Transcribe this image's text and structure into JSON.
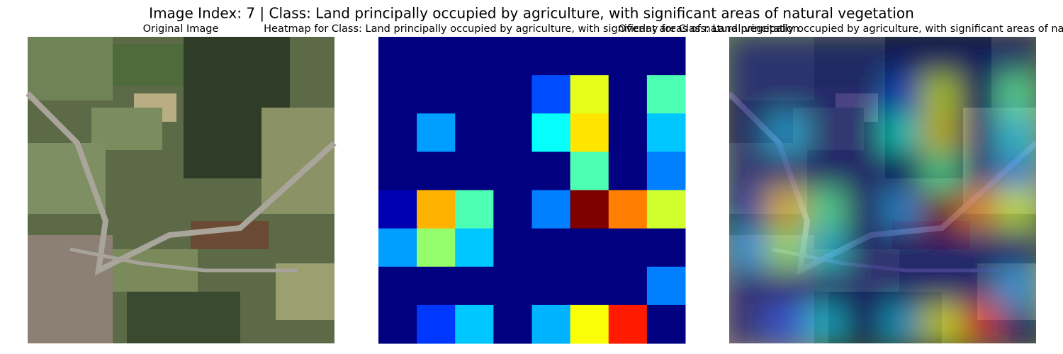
{
  "title": "Image Index: 7 | Class: Land principally occupied by agriculture, with significant areas of natural vegetation",
  "images": [
    {
      "title": "Original Image"
    },
    {
      "title": "Overlay for Class: Land principally occupied by agriculture, with significant areas of natural vegetation"
    }
  ],
  "chart_data": {
    "type": "heatmap",
    "title": "Heatmap for Class: Land principally occupied by agriculture, with significant areas of natural vegetation",
    "colormap": "jet",
    "zlim": [
      0,
      1
    ],
    "z": [
      [
        0,
        0,
        0,
        0,
        0,
        0,
        0,
        0
      ],
      [
        0,
        0,
        0,
        0,
        0.2,
        0.6,
        0,
        0.45
      ],
      [
        0,
        0.28,
        0,
        0,
        0.38,
        0.65,
        0,
        0.32
      ],
      [
        0,
        0,
        0,
        0,
        0,
        0.45,
        0,
        0.25
      ],
      [
        0.05,
        0.7,
        0.45,
        0,
        0.25,
        1.0,
        0.75,
        0.58
      ],
      [
        0.28,
        0.52,
        0.32,
        0,
        0,
        0,
        0,
        0
      ],
      [
        0,
        0,
        0,
        0,
        0,
        0,
        0,
        0.25
      ],
      [
        0,
        0.18,
        0.32,
        0,
        0.3,
        0.62,
        0.85,
        0
      ]
    ]
  }
}
